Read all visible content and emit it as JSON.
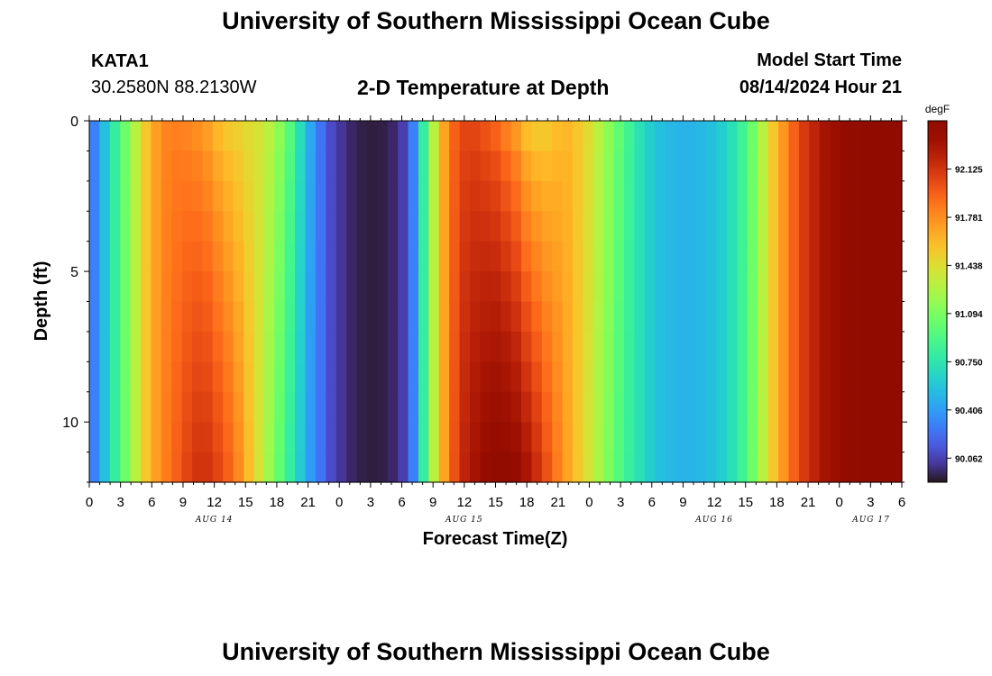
{
  "header": {
    "title": "University of Southern Mississippi Ocean Cube",
    "station_id": "KATA1",
    "coords": "30.2580N  88.2130W",
    "plot_title": "2-D Temperature at Depth",
    "model_start_label": "Model Start Time",
    "model_start_time": "08/14/2024 Hour 21"
  },
  "footer": {
    "title": "University of Southern Mississippi Ocean Cube"
  },
  "chart_data": {
    "type": "heatmap",
    "title": "2-D Temperature at Depth",
    "xlabel": "Forecast Time(Z)",
    "ylabel": "Depth (ft)",
    "x_hours": [
      0,
      1,
      2,
      3,
      4,
      5,
      6,
      7,
      8,
      9,
      10,
      11,
      12,
      13,
      14,
      15,
      16,
      17,
      18,
      19,
      20,
      21,
      22,
      23,
      24,
      25,
      26,
      27,
      28,
      29,
      30,
      31,
      32,
      33,
      34,
      35,
      36,
      37,
      38,
      39,
      40,
      41,
      42,
      43,
      44,
      45,
      46,
      47,
      48,
      49,
      50,
      51,
      52,
      53,
      54,
      55,
      56,
      57,
      58,
      59,
      60,
      61,
      62,
      63,
      64,
      65,
      66,
      67,
      68,
      69,
      70,
      71,
      72,
      73,
      74,
      75,
      76,
      77,
      78
    ],
    "x_start_hour_of_day": 0,
    "x_tick_labels": [
      "0",
      "3",
      "6",
      "9",
      "12",
      "15",
      "18",
      "21",
      "0",
      "3",
      "6",
      "9",
      "12",
      "15",
      "18",
      "21",
      "0",
      "3",
      "6",
      "9",
      "12",
      "15",
      "18",
      "21",
      "0",
      "3",
      "6"
    ],
    "day_labels": [
      "AUG 14",
      "AUG 15",
      "AUG 16",
      "AUG 17"
    ],
    "ylim": [
      0,
      12
    ],
    "y_tick_labels": [
      "0",
      "5",
      "10"
    ],
    "y_tick_values": [
      0,
      5,
      10
    ],
    "depth_levels_ft": [
      0.5,
      1.5,
      2.5,
      3.5,
      4.5,
      5.5,
      6.5,
      7.5,
      8.5,
      9.5,
      10.5,
      11.5
    ],
    "colorbar": {
      "unit_label": "degF",
      "min": 89.89,
      "max": 92.47,
      "tick_values": [
        90.062,
        90.406,
        90.75,
        91.094,
        91.438,
        91.781,
        92.125
      ],
      "tick_labels": [
        "90.062",
        "90.406",
        "90.750",
        "91.094",
        "91.438",
        "91.781",
        "92.125"
      ],
      "colormap": "turbo"
    },
    "surface_series": {
      "name": "",
      "hours": [
        0,
        1,
        2,
        3,
        4,
        5,
        6,
        7,
        8,
        9,
        10,
        11,
        12,
        13,
        14,
        15,
        16,
        17,
        18,
        19,
        20,
        21,
        22,
        23,
        24,
        25,
        26,
        27,
        28,
        29,
        30,
        31,
        32,
        33,
        34,
        35,
        36,
        37,
        38,
        39,
        40,
        41,
        42,
        43,
        44,
        45,
        46,
        47,
        48,
        49,
        50,
        51,
        52,
        53,
        54,
        55,
        56,
        57,
        58,
        59,
        60,
        61,
        62,
        63,
        64,
        65,
        66,
        67,
        68,
        69,
        70,
        71,
        72,
        73,
        74,
        75,
        76,
        77,
        78
      ],
      "values_degF": [
        90.3,
        90.55,
        90.8,
        91.05,
        91.3,
        91.55,
        91.72,
        91.82,
        91.84,
        91.82,
        91.78,
        91.72,
        91.62,
        91.55,
        91.5,
        91.45,
        91.4,
        91.3,
        91.15,
        90.95,
        90.7,
        90.45,
        90.25,
        90.1,
        90.02,
        89.96,
        89.93,
        89.92,
        89.93,
        89.96,
        90.05,
        90.3,
        90.8,
        91.3,
        91.7,
        91.95,
        92.05,
        92.05,
        92.0,
        91.95,
        91.85,
        91.75,
        91.6,
        91.55,
        91.55,
        91.6,
        91.62,
        91.55,
        91.45,
        91.3,
        91.15,
        91.0,
        90.85,
        90.72,
        90.62,
        90.55,
        90.52,
        90.5,
        90.5,
        90.52,
        90.55,
        90.62,
        90.72,
        90.85,
        91.05,
        91.3,
        91.55,
        91.75,
        91.95,
        92.1,
        92.2,
        92.3,
        92.35,
        92.4,
        92.42,
        92.44,
        92.45,
        92.46,
        92.47
      ]
    },
    "bottom_series": {
      "name": "",
      "hours": [
        0,
        1,
        2,
        3,
        4,
        5,
        6,
        7,
        8,
        9,
        10,
        11,
        12,
        13,
        14,
        15,
        16,
        17,
        18,
        19,
        20,
        21,
        22,
        23,
        24,
        25,
        26,
        27,
        28,
        29,
        30,
        31,
        32,
        33,
        34,
        35,
        36,
        37,
        38,
        39,
        40,
        41,
        42,
        43,
        44,
        45,
        46,
        47,
        48,
        49,
        50,
        51,
        52,
        53,
        54,
        55,
        56,
        57,
        58,
        59,
        60,
        61,
        62,
        63,
        64,
        65,
        66,
        67,
        68,
        69,
        70,
        71,
        72,
        73,
        74,
        75,
        76,
        77,
        78
      ],
      "values_degF": [
        90.3,
        90.55,
        90.8,
        91.05,
        91.3,
        91.55,
        91.72,
        91.85,
        91.95,
        92.05,
        92.12,
        92.12,
        92.05,
        91.95,
        91.8,
        91.6,
        91.4,
        91.2,
        91.0,
        90.8,
        90.6,
        90.4,
        90.25,
        90.1,
        90.02,
        89.96,
        89.93,
        89.92,
        89.93,
        89.96,
        90.05,
        90.3,
        90.8,
        91.3,
        91.7,
        92.0,
        92.2,
        92.3,
        92.38,
        92.42,
        92.42,
        92.38,
        92.28,
        92.15,
        92.0,
        91.85,
        91.7,
        91.55,
        91.4,
        91.25,
        91.1,
        90.95,
        90.82,
        90.72,
        90.62,
        90.55,
        90.52,
        90.5,
        90.5,
        90.52,
        90.55,
        90.62,
        90.72,
        90.85,
        91.05,
        91.3,
        91.55,
        91.75,
        91.95,
        92.1,
        92.2,
        92.3,
        92.35,
        92.4,
        92.42,
        92.44,
        92.45,
        92.46,
        92.47
      ]
    }
  }
}
